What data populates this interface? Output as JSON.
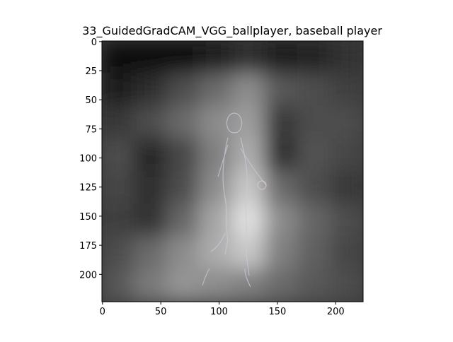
{
  "chart_data": {
    "type": "heatmap",
    "title": "33_GuidedGradCAM_VGG_ballplayer, baseball player",
    "xlabel": "",
    "ylabel": "",
    "image_size": [
      224,
      224
    ],
    "xlim": [
      -0.5,
      223.5
    ],
    "ylim": [
      223.5,
      -0.5
    ],
    "x_ticks": [
      0,
      50,
      100,
      150,
      200
    ],
    "x_tick_labels": [
      "0",
      "50",
      "100",
      "150",
      "200"
    ],
    "y_ticks": [
      0,
      25,
      50,
      75,
      100,
      125,
      150,
      175,
      200
    ],
    "y_tick_labels": [
      "0",
      "25",
      "50",
      "75",
      "100",
      "125",
      "150",
      "175",
      "200"
    ],
    "colormap": "gray",
    "grid": false,
    "intensity_grid": {
      "rows": 8,
      "cols": 8,
      "values": [
        [
          0.05,
          0.03,
          0.04,
          0.12,
          0.18,
          0.12,
          0.14,
          0.2
        ],
        [
          0.1,
          0.18,
          0.3,
          0.42,
          0.55,
          0.35,
          0.3,
          0.25
        ],
        [
          0.22,
          0.3,
          0.42,
          0.55,
          0.62,
          0.22,
          0.3,
          0.3
        ],
        [
          0.3,
          0.15,
          0.28,
          0.5,
          0.68,
          0.18,
          0.32,
          0.28
        ],
        [
          0.28,
          0.18,
          0.3,
          0.55,
          0.78,
          0.42,
          0.3,
          0.22
        ],
        [
          0.25,
          0.2,
          0.4,
          0.65,
          0.88,
          0.55,
          0.4,
          0.3
        ],
        [
          0.3,
          0.42,
          0.55,
          0.68,
          0.78,
          0.5,
          0.38,
          0.28
        ],
        [
          0.35,
          0.48,
          0.58,
          0.55,
          0.5,
          0.42,
          0.35,
          0.3
        ]
      ]
    }
  }
}
